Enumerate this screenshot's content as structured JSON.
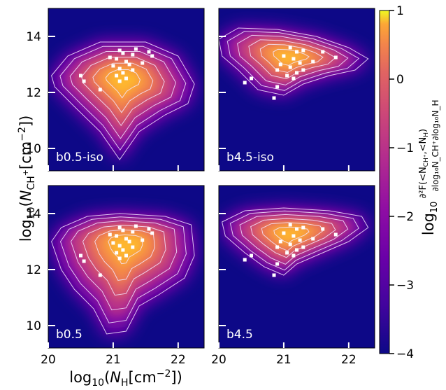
{
  "chart_data": {
    "type": "heatmap",
    "colormap": "plasma",
    "xlabel": "log10(NH[cm^-2])",
    "ylabel": "log10(NCH+[cm^-2])",
    "xlabel_parts": {
      "prefix": "log",
      "base": "10",
      "sym": "N",
      "sub": "H",
      "unit": "[cm",
      "exp": "−2",
      "close": "])"
    },
    "ylabel_parts": {
      "prefix": "log",
      "base": "10",
      "sym": "N",
      "sub": "CH",
      "sup": "+",
      "unit": "[cm",
      "exp": "−2",
      "close": "])"
    },
    "xlim": [
      20,
      22.4
    ],
    "ylim": [
      9.2,
      15
    ],
    "xticks": [
      20,
      21,
      22
    ],
    "xtick_labels": [
      "20",
      "21",
      "22"
    ],
    "yticks": [
      10,
      12,
      14
    ],
    "ytick_labels": [
      "10",
      "12",
      "14"
    ],
    "colorbar": {
      "range": [
        -4,
        1
      ],
      "ticks": [
        1,
        0,
        -1,
        -2,
        -3,
        -4
      ],
      "tick_labels": [
        "1",
        "0",
        "−1",
        "−2",
        "−3",
        "−4"
      ],
      "label": "log10 ∂²F(<NCH+,<NH) / ∂log10NCH+∂log10NH"
    },
    "panels": [
      {
        "label": "b0.5-iso",
        "peak": [
          21.15,
          12.5
        ],
        "envelope": [
          [
            20.05,
            12.6
          ],
          [
            20.3,
            13.3
          ],
          [
            20.8,
            13.8
          ],
          [
            21.5,
            13.8
          ],
          [
            22.0,
            13.3
          ],
          [
            22.25,
            12.3
          ],
          [
            22.15,
            11.6
          ],
          [
            21.8,
            11.2
          ],
          [
            21.4,
            10.6
          ],
          [
            21.1,
            9.6
          ],
          [
            20.8,
            10.6
          ],
          [
            20.4,
            11.5
          ],
          [
            20.1,
            12.2
          ]
        ],
        "obs_points": [
          [
            21.1,
            13.5
          ],
          [
            21.15,
            13.4
          ],
          [
            21.3,
            13.35
          ],
          [
            21.05,
            13.2
          ],
          [
            21.2,
            13.1
          ],
          [
            21.25,
            13.0
          ],
          [
            21.0,
            12.95
          ],
          [
            21.1,
            12.85
          ],
          [
            21.3,
            12.8
          ],
          [
            21.15,
            12.7
          ],
          [
            21.05,
            12.6
          ],
          [
            21.2,
            12.5
          ],
          [
            21.45,
            13.05
          ],
          [
            21.6,
            13.3
          ],
          [
            21.55,
            13.45
          ],
          [
            21.35,
            13.55
          ],
          [
            20.95,
            13.25
          ],
          [
            20.5,
            12.6
          ],
          [
            20.8,
            12.1
          ],
          [
            20.55,
            12.4
          ],
          [
            21.1,
            12.4
          ]
        ]
      },
      {
        "label": "b4.5-iso",
        "peak": [
          21.1,
          13.3
        ],
        "envelope": [
          [
            20.0,
            13.9
          ],
          [
            20.3,
            14.3
          ],
          [
            20.9,
            14.25
          ],
          [
            21.5,
            14.0
          ],
          [
            22.0,
            13.6
          ],
          [
            22.3,
            13.2
          ],
          [
            22.1,
            12.8
          ],
          [
            21.7,
            12.6
          ],
          [
            21.3,
            12.3
          ],
          [
            21.0,
            11.9
          ],
          [
            20.6,
            12.1
          ],
          [
            20.3,
            12.8
          ],
          [
            20.05,
            13.3
          ]
        ],
        "obs_points": [
          [
            21.1,
            13.6
          ],
          [
            21.2,
            13.45
          ],
          [
            21.3,
            13.5
          ],
          [
            21.0,
            13.3
          ],
          [
            21.15,
            13.2
          ],
          [
            21.25,
            13.05
          ],
          [
            20.95,
            13.0
          ],
          [
            21.1,
            12.9
          ],
          [
            21.3,
            12.8
          ],
          [
            21.2,
            12.7
          ],
          [
            21.05,
            12.6
          ],
          [
            21.45,
            13.1
          ],
          [
            21.6,
            13.45
          ],
          [
            21.8,
            13.25
          ],
          [
            20.9,
            12.8
          ],
          [
            20.5,
            12.5
          ],
          [
            20.4,
            12.35
          ],
          [
            20.9,
            12.2
          ],
          [
            20.85,
            11.8
          ],
          [
            21.15,
            12.5
          ]
        ]
      },
      {
        "label": "b0.5",
        "peak": [
          21.2,
          13.0
        ],
        "envelope": [
          [
            20.05,
            13.0
          ],
          [
            20.2,
            13.5
          ],
          [
            20.6,
            13.9
          ],
          [
            21.1,
            14.0
          ],
          [
            21.8,
            13.9
          ],
          [
            22.2,
            13.6
          ],
          [
            22.25,
            12.5
          ],
          [
            22.1,
            11.7
          ],
          [
            21.7,
            11.1
          ],
          [
            21.4,
            10.7
          ],
          [
            21.2,
            9.8
          ],
          [
            20.9,
            9.7
          ],
          [
            20.7,
            10.6
          ],
          [
            20.4,
            11.3
          ],
          [
            20.2,
            12.0
          ]
        ],
        "obs_points": [
          [
            21.1,
            13.5
          ],
          [
            21.15,
            13.4
          ],
          [
            21.3,
            13.35
          ],
          [
            21.05,
            13.2
          ],
          [
            21.2,
            13.1
          ],
          [
            21.25,
            13.0
          ],
          [
            21.0,
            12.95
          ],
          [
            21.1,
            12.85
          ],
          [
            21.3,
            12.8
          ],
          [
            21.15,
            12.7
          ],
          [
            21.05,
            12.6
          ],
          [
            21.2,
            12.5
          ],
          [
            21.45,
            13.05
          ],
          [
            21.6,
            13.3
          ],
          [
            21.55,
            13.45
          ],
          [
            21.35,
            13.55
          ],
          [
            20.95,
            13.25
          ],
          [
            20.5,
            12.5
          ],
          [
            20.8,
            11.8
          ],
          [
            20.55,
            12.3
          ],
          [
            21.1,
            12.4
          ]
        ]
      },
      {
        "label": "b4.5",
        "peak": [
          21.1,
          13.3
        ],
        "envelope": [
          [
            20.05,
            13.7
          ],
          [
            20.4,
            14.1
          ],
          [
            21.0,
            14.2
          ],
          [
            21.7,
            14.1
          ],
          [
            22.2,
            13.9
          ],
          [
            22.3,
            13.5
          ],
          [
            22.0,
            13.0
          ],
          [
            21.6,
            12.6
          ],
          [
            21.2,
            12.2
          ],
          [
            21.0,
            11.8
          ],
          [
            20.7,
            12.1
          ],
          [
            20.4,
            12.6
          ],
          [
            20.1,
            13.2
          ]
        ],
        "obs_points": [
          [
            21.1,
            13.6
          ],
          [
            21.2,
            13.45
          ],
          [
            21.3,
            13.5
          ],
          [
            21.0,
            13.3
          ],
          [
            21.15,
            13.2
          ],
          [
            21.25,
            13.05
          ],
          [
            20.95,
            13.0
          ],
          [
            21.1,
            12.9
          ],
          [
            21.3,
            12.8
          ],
          [
            21.2,
            12.7
          ],
          [
            21.05,
            12.6
          ],
          [
            21.45,
            13.1
          ],
          [
            21.6,
            13.45
          ],
          [
            21.8,
            13.25
          ],
          [
            20.9,
            12.8
          ],
          [
            20.5,
            12.5
          ],
          [
            20.4,
            12.35
          ],
          [
            20.9,
            12.2
          ],
          [
            20.85,
            11.8
          ],
          [
            21.15,
            12.5
          ]
        ]
      }
    ]
  }
}
